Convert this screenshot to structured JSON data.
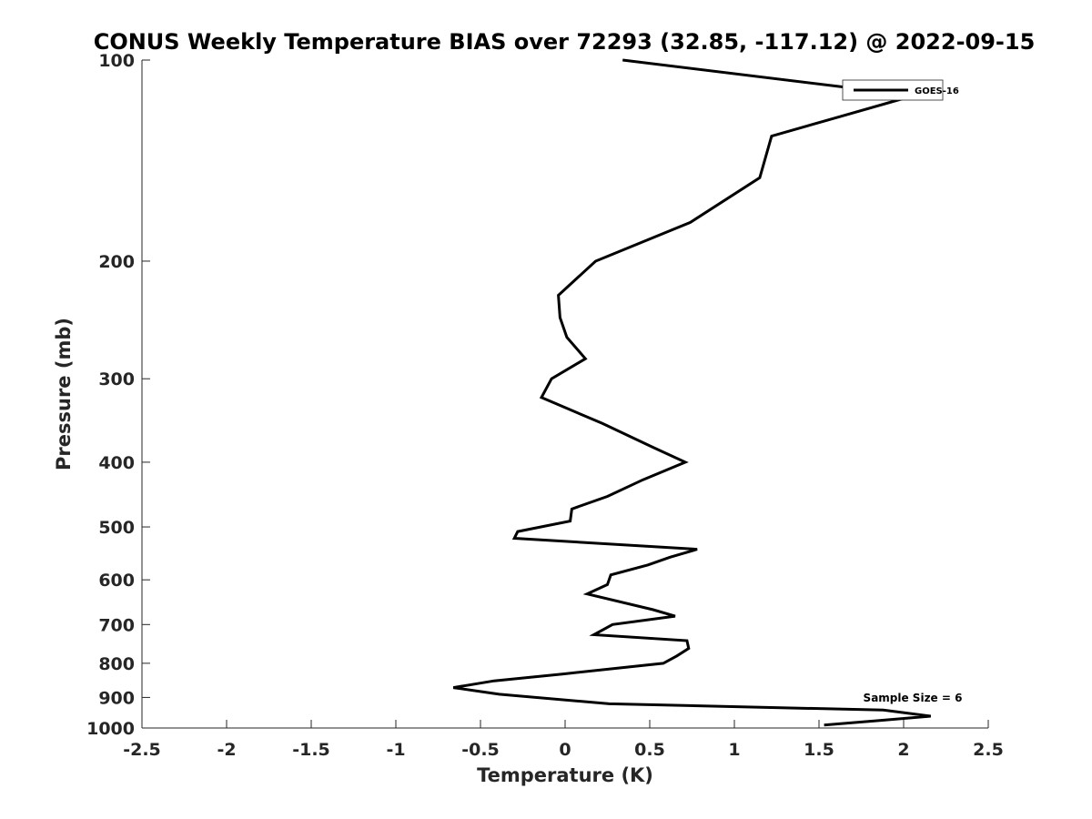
{
  "chart_data": {
    "type": "line",
    "title": "CONUS Weekly Temperature BIAS over 72293 (32.85, -117.12) @ 2022-09-15",
    "xlabel": "Temperature (K)",
    "ylabel": "Pressure (mb)",
    "xlim": [
      -2.5,
      2.5
    ],
    "ylim": [
      1000,
      100
    ],
    "y_scale": "log",
    "x_ticks": [
      -2.5,
      -2,
      -1.5,
      -1,
      -0.5,
      0,
      0.5,
      1,
      1.5,
      2,
      2.5
    ],
    "x_tick_labels": [
      "-2.5",
      "-2",
      "-1.5",
      "-1",
      "-0.5",
      "0",
      "0.5",
      "1",
      "1.5",
      "2",
      "2.5"
    ],
    "y_ticks": [
      100,
      200,
      300,
      400,
      500,
      600,
      700,
      800,
      900,
      1000
    ],
    "y_tick_labels": [
      "100",
      "200",
      "300",
      "400",
      "500",
      "600",
      "700",
      "800",
      "900",
      "1000"
    ],
    "grid": false,
    "legend_position": "top-right",
    "annotation": "Sample Size = 6",
    "series": [
      {
        "name": "GOES-16",
        "color": "#000000",
        "x": [
          0.34,
          2.06,
          1.22,
          1.15,
          0.74,
          0.18,
          -0.04,
          -0.03,
          0.01,
          0.12,
          -0.08,
          -0.14,
          0.22,
          0.52,
          0.71,
          0.46,
          0.25,
          0.04,
          0.03,
          -0.28,
          -0.3,
          0.78,
          0.62,
          0.49,
          0.27,
          0.25,
          0.13,
          0.52,
          0.65,
          0.28,
          0.17,
          0.72,
          0.73,
          0.66,
          0.58,
          -0.01,
          -0.42,
          -0.66,
          -0.39,
          0.26,
          1.88,
          2.16,
          1.85,
          1.53
        ],
        "y": [
          100,
          113,
          130,
          150,
          175,
          200,
          225,
          243,
          260,
          280,
          300,
          320,
          350,
          380,
          400,
          425,
          450,
          470,
          490,
          508,
          520,
          540,
          555,
          570,
          590,
          610,
          630,
          665,
          680,
          700,
          725,
          740,
          760,
          780,
          800,
          830,
          850,
          870,
          890,
          920,
          940,
          960,
          975,
          990
        ]
      }
    ]
  }
}
